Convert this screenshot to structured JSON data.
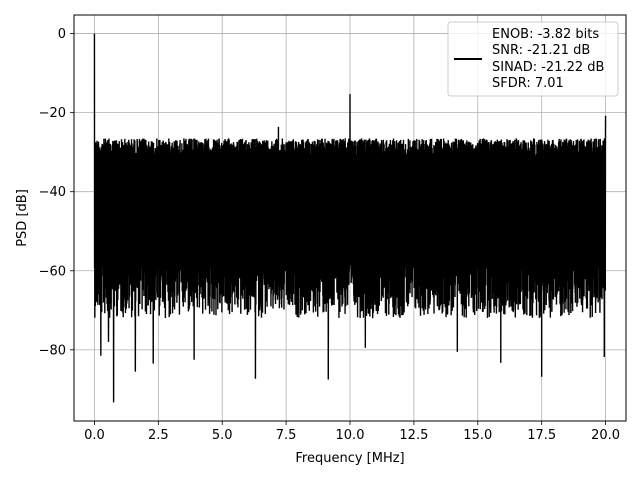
{
  "chart_data": {
    "type": "line",
    "title": "",
    "xlabel": "Frequency [MHz]",
    "ylabel": "PSD [dB]",
    "xlim": [
      -0.8,
      20.8
    ],
    "ylim": [
      -98,
      4.7
    ],
    "x_ticks": [
      0.0,
      2.5,
      5.0,
      7.5,
      10.0,
      12.5,
      15.0,
      17.5,
      20.0
    ],
    "x_tick_labels": [
      "0.0",
      "2.5",
      "5.0",
      "7.5",
      "10.0",
      "12.5",
      "15.0",
      "17.5",
      "20.0"
    ],
    "y_ticks": [
      0,
      -20,
      -40,
      -60,
      -80
    ],
    "y_tick_labels": [
      "0",
      "−20",
      "−40",
      "−60",
      "−80"
    ],
    "grid": true,
    "legend_position": "top-right",
    "series": [
      {
        "color": "#000000",
        "description": "dense noise floor spectrum between about -30 and -70 dB with sparse dips down to about -93 dB",
        "features": [
          {
            "x": 0.0,
            "y": 0.0,
            "kind": "dc-peak"
          },
          {
            "x": 10.0,
            "y": -15.3,
            "kind": "spur"
          },
          {
            "x": 20.0,
            "y": -20.8,
            "kind": "edge-spur"
          },
          {
            "x": 0.05,
            "y": -51,
            "kind": "edge-dip"
          },
          {
            "x": 0.15,
            "y": -66,
            "kind": "dip"
          },
          {
            "x": 0.25,
            "y": -81.5,
            "kind": "dip"
          },
          {
            "x": 0.55,
            "y": -78,
            "kind": "dip"
          },
          {
            "x": 0.75,
            "y": -93.3,
            "kind": "dip"
          },
          {
            "x": 1.6,
            "y": -85.5,
            "kind": "dip"
          },
          {
            "x": 2.3,
            "y": -83.5,
            "kind": "dip"
          },
          {
            "x": 3.9,
            "y": -82.5,
            "kind": "dip"
          },
          {
            "x": 6.3,
            "y": -87.3,
            "kind": "dip"
          },
          {
            "x": 9.15,
            "y": -87.5,
            "kind": "dip"
          },
          {
            "x": 10.6,
            "y": -79.5,
            "kind": "dip"
          },
          {
            "x": 14.2,
            "y": -80.5,
            "kind": "dip"
          },
          {
            "x": 15.9,
            "y": -83.3,
            "kind": "dip"
          },
          {
            "x": 17.5,
            "y": -86.8,
            "kind": "dip"
          },
          {
            "x": 19.95,
            "y": -81.8,
            "kind": "dip"
          },
          {
            "x": 7.2,
            "y": -23.6,
            "kind": "peak"
          }
        ]
      }
    ],
    "legend": {
      "lines": [
        "ENOB: -3.82 bits",
        "SNR: -21.21 dB",
        "SINAD: -21.22 dB",
        "SFDR: 7.01"
      ]
    }
  }
}
